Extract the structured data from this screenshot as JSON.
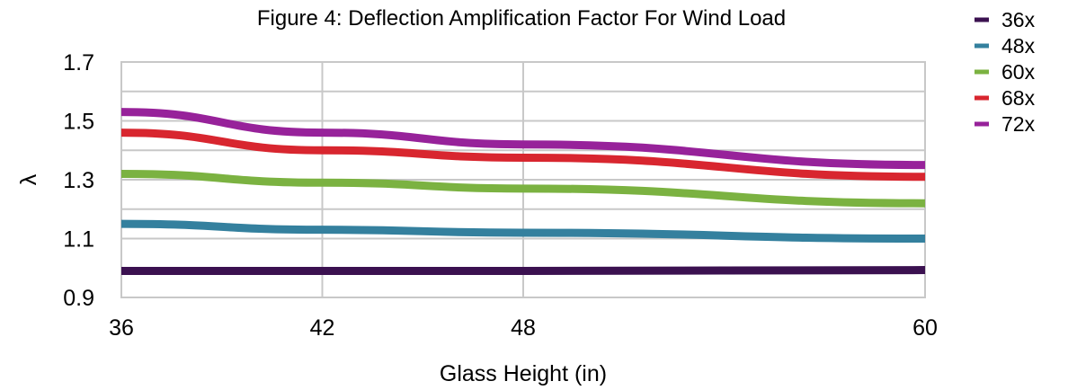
{
  "chart_data": {
    "type": "line",
    "title": "Figure 4: Deflection Amplification Factor For Wind Load",
    "xlabel": "Glass Height (in)",
    "ylabel": "λ",
    "x": [
      36,
      42,
      48,
      60
    ],
    "x_tick_labels": [
      "36",
      "42",
      "48",
      "60"
    ],
    "y_tick_labels": [
      "0.9",
      "1.1",
      "1.3",
      "1.5",
      "1.7"
    ],
    "ylim": [
      0.9,
      1.7
    ],
    "grid": true,
    "legend_position": "top-right",
    "series": [
      {
        "name": "36x",
        "color": "#3b1150",
        "values": [
          0.99,
          0.99,
          0.99,
          0.993
        ]
      },
      {
        "name": "48x",
        "color": "#34809e",
        "values": [
          1.15,
          1.13,
          1.12,
          1.1
        ]
      },
      {
        "name": "60x",
        "color": "#7bb241",
        "values": [
          1.32,
          1.29,
          1.27,
          1.22
        ]
      },
      {
        "name": "68x",
        "color": "#d8262f",
        "values": [
          1.46,
          1.4,
          1.375,
          1.31
        ]
      },
      {
        "name": "72x",
        "color": "#97229a",
        "values": [
          1.53,
          1.46,
          1.42,
          1.35
        ]
      }
    ]
  }
}
